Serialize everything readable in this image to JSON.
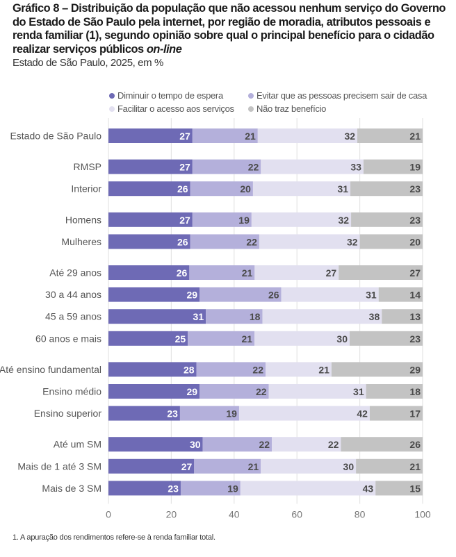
{
  "header": {
    "title_main": "Gráfico 8 – Distribuição da população que não acessou nenhum serviço do Governo do Estado de São Paulo pela internet, por região de moradia, atributos pessoais e renda familiar (1), segundo opinião sobre qual o principal benefício para o cidadão realizar serviços públicos ",
    "title_italic": "on-line",
    "subtitle": "Estado de São Paulo, 2025, em %"
  },
  "footnote": "1. A apuração dos rendimentos refere-se à renda familiar total.",
  "chart_data": {
    "type": "bar",
    "orientation": "horizontal",
    "stacked": true,
    "title": "Gráfico 8 – Distribuição da população que não acessou nenhum serviço do Governo do Estado de São Paulo pela internet, por região de moradia, atributos pessoais e renda familiar (1), segundo opinião sobre qual o principal benefício para o cidadão realizar serviços públicos on-line",
    "subtitle": "Estado de São Paulo, 2025, em %",
    "xlabel": "",
    "ylabel": "",
    "xlim": [
      0,
      100
    ],
    "xticks": [
      0,
      20,
      40,
      60,
      80,
      100
    ],
    "grid": true,
    "legend_position": "top",
    "categories": [
      "Estado de São Paulo",
      "RMSP",
      "Interior",
      "Homens",
      "Mulheres",
      "Até 29 anos",
      "30 a 44 anos",
      "45 a 59 anos",
      "60 anos e mais",
      "Até ensino fundamental",
      "Ensino médio",
      "Ensino superior",
      "Até um SM",
      "Mais de 1 até 3 SM",
      "Mais de 3 SM"
    ],
    "groups": [
      0,
      1,
      1,
      2,
      2,
      3,
      3,
      3,
      3,
      4,
      4,
      4,
      5,
      5,
      5
    ],
    "series": [
      {
        "name": "Diminuir o tempo de espera",
        "color": "#6e6ab5",
        "label_color": "#ffffff",
        "values": [
          27,
          27,
          26,
          27,
          26,
          26,
          29,
          31,
          25,
          28,
          29,
          23,
          30,
          27,
          23
        ]
      },
      {
        "name": "Evitar que as pessoas precisem sair de casa",
        "color": "#b4b0db",
        "label_color": "#4a4a4a",
        "values": [
          21,
          22,
          20,
          19,
          22,
          21,
          26,
          18,
          21,
          22,
          22,
          19,
          22,
          21,
          19
        ]
      },
      {
        "name": "Facilitar o acesso aos serviços",
        "color": "#e2e0f0",
        "label_color": "#4a4a4a",
        "values": [
          32,
          33,
          31,
          32,
          32,
          27,
          31,
          38,
          30,
          21,
          31,
          42,
          22,
          30,
          43
        ]
      },
      {
        "name": "Não traz benefício",
        "color": "#c3c3c3",
        "label_color": "#4a4a4a",
        "values": [
          21,
          19,
          23,
          23,
          20,
          27,
          14,
          13,
          23,
          29,
          18,
          17,
          26,
          21,
          15
        ]
      }
    ]
  }
}
